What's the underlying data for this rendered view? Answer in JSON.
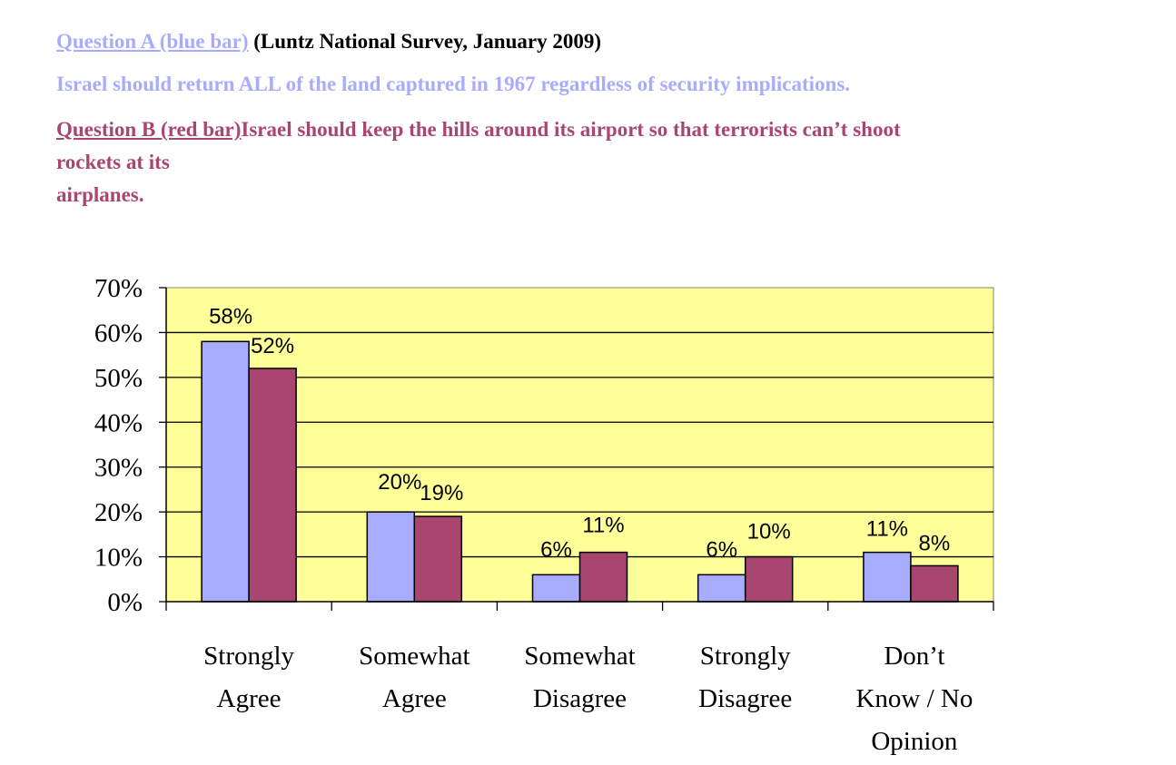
{
  "header": {
    "question_a_link": "Question A (blue bar)",
    "question_a_source": "(Luntz National Survey, January 2009)",
    "question_a_text": "Israel should return ALL of the land captured in 1967 regardless of security implications.",
    "question_b_link": "Question B  (red bar)",
    "question_b_text_line1": "Israel should keep the hills around its airport so that terrorists can’t shoot",
    "question_b_text_line2": "rockets at its",
    "question_b_text_line3": "airplanes."
  },
  "colors": {
    "question_a": "#a8acff",
    "question_b": "#a9466f",
    "plot_background": "#ffff99"
  },
  "chart_data": {
    "type": "bar",
    "title": "",
    "xlabel": "",
    "ylabel": "",
    "ylim": [
      0,
      70
    ],
    "yticks": [
      "0%",
      "10%",
      "20%",
      "30%",
      "40%",
      "50%",
      "60%",
      "70%"
    ],
    "grid": true,
    "categories": [
      [
        "Strongly",
        "Agree"
      ],
      [
        "Somewhat",
        "Agree"
      ],
      [
        "Somewhat",
        "Disagree"
      ],
      [
        "Strongly",
        "Disagree"
      ],
      [
        "Don’t",
        "Know / No",
        "Opinion"
      ]
    ],
    "series": [
      {
        "name": "Question A (blue bar)",
        "color": "#a8acff",
        "values": [
          58,
          20,
          6,
          6,
          11
        ],
        "labels": [
          "58%",
          "20%",
          "6%",
          "6%",
          "11%"
        ]
      },
      {
        "name": "Question B (red bar)",
        "color": "#a9466f",
        "values": [
          52,
          19,
          11,
          10,
          8
        ],
        "labels": [
          "52%",
          "19%",
          "11%",
          "10%",
          "8%"
        ]
      }
    ]
  }
}
